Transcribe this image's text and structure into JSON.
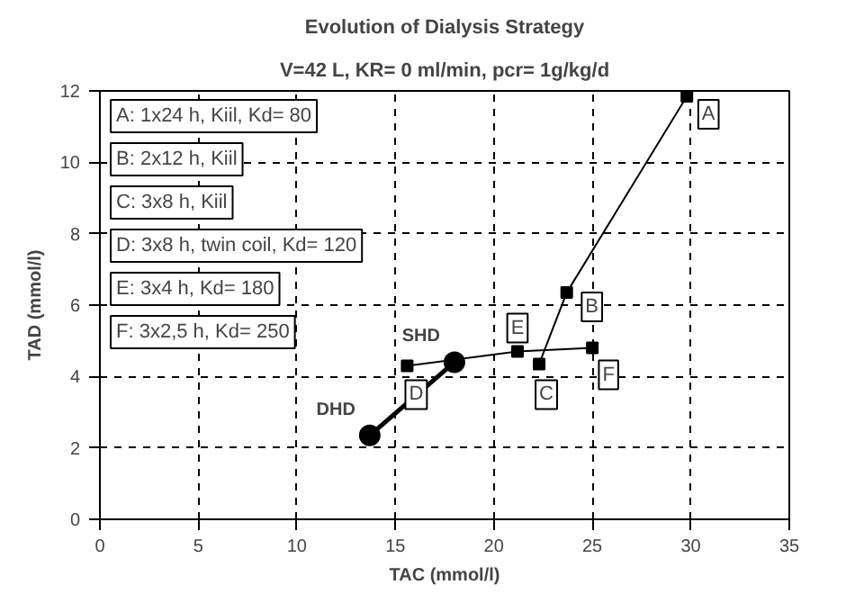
{
  "chart_data": {
    "type": "line",
    "title": "Evolution of Dialysis Strategy",
    "subtitle": "V=42 L, KR= 0 ml/min, pcr= 1g/kg/d",
    "xlabel": "TAC (mmol/l)",
    "ylabel": "TAD (mmol/l)",
    "xlim": [
      0,
      35
    ],
    "xticks": [
      0,
      5,
      10,
      15,
      20,
      25,
      30,
      35
    ],
    "ylim": [
      0,
      12
    ],
    "yticks": [
      0,
      2,
      4,
      6,
      8,
      10,
      12
    ],
    "grid": true,
    "line_style": "solid",
    "series": [
      {
        "color": "#000000",
        "marker": "square",
        "x": [
          22.3,
          23.7,
          29.8
        ],
        "values": [
          4.35,
          6.35,
          11.85
        ]
      },
      {
        "color": "#000000",
        "marker": "square",
        "x": [
          15.6,
          21.2,
          25.0
        ],
        "values": [
          4.3,
          4.7,
          4.8
        ]
      },
      {
        "color": "#000000",
        "marker": "none",
        "x": [
          13.7,
          18.0
        ],
        "values": [
          2.35,
          4.4
        ]
      },
      {
        "type": "scatter",
        "name": "DHD",
        "color": "#000000",
        "marker": "circle",
        "x": [
          13.7
        ],
        "values": [
          2.35
        ]
      },
      {
        "type": "scatter",
        "name": "SHD",
        "color": "#000000",
        "marker": "circle",
        "x": [
          18.0
        ],
        "values": [
          4.4
        ]
      }
    ],
    "annotations": [
      "A: 1x24 h, Kiil, Kd= 80",
      "B: 2x12 h, Kiil",
      "C: 3x8 h, Kiil",
      "D: 3x8 h, twin coil, Kd= 120",
      "E: 3x4 h, Kd= 180",
      "F: 3x2,5 h, Kd= 250",
      {
        "text": "A",
        "x": 29.8,
        "y": 11.85
      },
      {
        "text": "B",
        "x": 23.7,
        "y": 6.35
      },
      {
        "text": "C",
        "x": 22.3,
        "y": 4.35
      },
      {
        "text": "D",
        "x": 15.6,
        "y": 4.3
      },
      {
        "text": "E",
        "x": 21.2,
        "y": 4.7
      },
      {
        "text": "F",
        "x": 25.0,
        "y": 4.8
      }
    ]
  }
}
